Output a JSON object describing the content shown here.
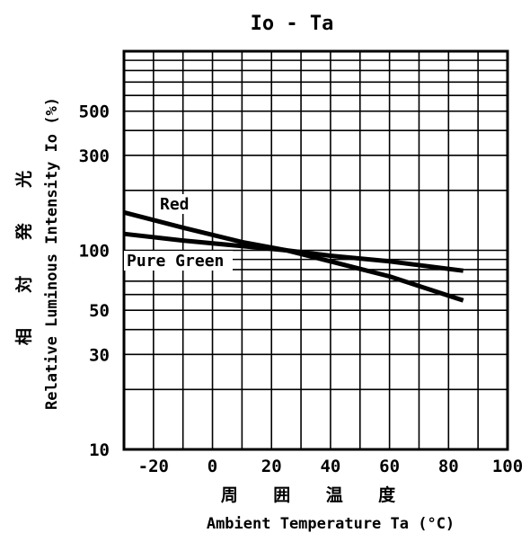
{
  "chart_data": {
    "type": "line",
    "title": "Io - Ta",
    "xlabel": "Ambient Temperature Ta (°C)",
    "xlabel_cjk": "周 囲 温 度",
    "ylabel": "Relative Luminous Intensity Io (%)",
    "ylabel_cjk": "相 対 発 光",
    "xlim": [
      -30,
      100
    ],
    "ylim": [
      10,
      1000
    ],
    "yscale": "log",
    "grid": true,
    "x_ticks": [
      -20,
      0,
      20,
      40,
      60,
      80,
      100
    ],
    "x_tick_labels": [
      "-20",
      "0",
      "20",
      "40",
      "60",
      "80",
      "100"
    ],
    "y_ticks": [
      10,
      30,
      50,
      100,
      300,
      500
    ],
    "y_tick_labels": [
      "10",
      "30",
      "50",
      "100",
      "300",
      "500"
    ],
    "series": [
      {
        "name": "Red",
        "x": [
          -30,
          -10,
          10,
          25,
          40,
          60,
          85
        ],
        "y": [
          155,
          130,
          110,
          100,
          88,
          74,
          56
        ]
      },
      {
        "name": "Pure Green",
        "x": [
          -30,
          -10,
          10,
          25,
          40,
          60,
          85
        ],
        "y": [
          121,
          112,
          105,
          100,
          94,
          88,
          79
        ]
      }
    ]
  }
}
